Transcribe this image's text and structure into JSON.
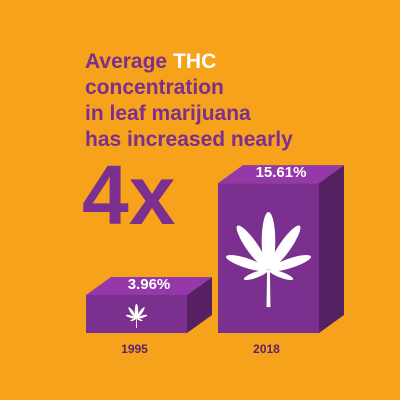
{
  "chart_data": {
    "type": "bar",
    "title_lines": [
      [
        "Average",
        "THC"
      ],
      [
        "concentration"
      ],
      [
        "in leaf marijuana"
      ],
      [
        "has increased nearly"
      ]
    ],
    "annotation": "4x",
    "categories": [
      "1995",
      "2018"
    ],
    "values": [
      3.96,
      15.61
    ],
    "value_labels": [
      "3.96%",
      "15.61%"
    ],
    "color": "#7b2f8e",
    "background": "#f7a21b",
    "highlight_color": "#ffffff"
  }
}
